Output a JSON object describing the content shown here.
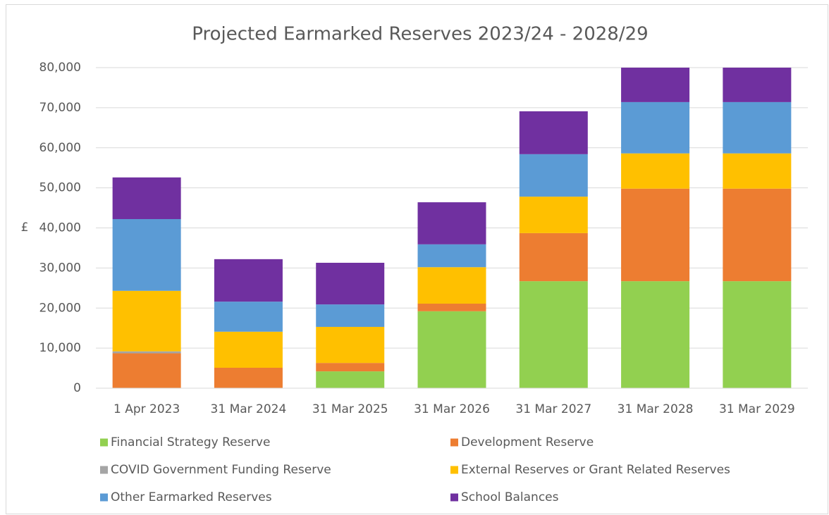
{
  "chart_data": {
    "type": "stacked_bar",
    "title": "Projected Earmarked Reserves 2023/24 - 2028/29",
    "y_label": "£",
    "categories": [
      "1 Apr 2023",
      "31 Mar 2024",
      "31 Mar 2025",
      "31 Mar 2026",
      "31 Mar 2027",
      "31 Mar 2028",
      "31 Mar 2029"
    ],
    "series": [
      {
        "name": "Financial Strategy Reserve",
        "color": "#92d050",
        "values": [
          0,
          0,
          4200,
          19200,
          26700,
          26700,
          26700
        ]
      },
      {
        "name": "Development Reserve",
        "color": "#ed7d31",
        "values": [
          8700,
          5100,
          2100,
          1900,
          12000,
          23100,
          23100
        ]
      },
      {
        "name": "COVID Government Funding Reserve",
        "color": "#a5a5a5",
        "values": [
          500,
          0,
          0,
          0,
          0,
          0,
          0
        ]
      },
      {
        "name": "External Reserves or Grant Related Reserves",
        "color": "#ffc000",
        "values": [
          15100,
          9000,
          9000,
          9100,
          9100,
          8800,
          8800
        ]
      },
      {
        "name": "Other Earmarked Reserves",
        "color": "#5b9bd5",
        "values": [
          17900,
          7500,
          5600,
          5700,
          10600,
          12800,
          12800
        ]
      },
      {
        "name": "School Balances",
        "color": "#7030a0",
        "values": [
          10400,
          10600,
          10400,
          10500,
          10700,
          10600,
          10600
        ]
      }
    ],
    "ylim": [
      0,
      80000
    ],
    "yticks": [
      0,
      {
        "value": 10000,
        "label": "10,000"
      },
      {
        "value": 20000,
        "label": "20,000"
      },
      {
        "value": 30000,
        "label": "30,000"
      },
      {
        "value": 40000,
        "label": "40,000"
      },
      {
        "value": 50000,
        "label": "50,000"
      },
      {
        "value": 60000,
        "label": "60,000"
      },
      {
        "value": 70000,
        "label": "70,000"
      },
      {
        "value": 80000,
        "label": "80,000"
      }
    ],
    "grid": true,
    "legend": "bottom"
  }
}
